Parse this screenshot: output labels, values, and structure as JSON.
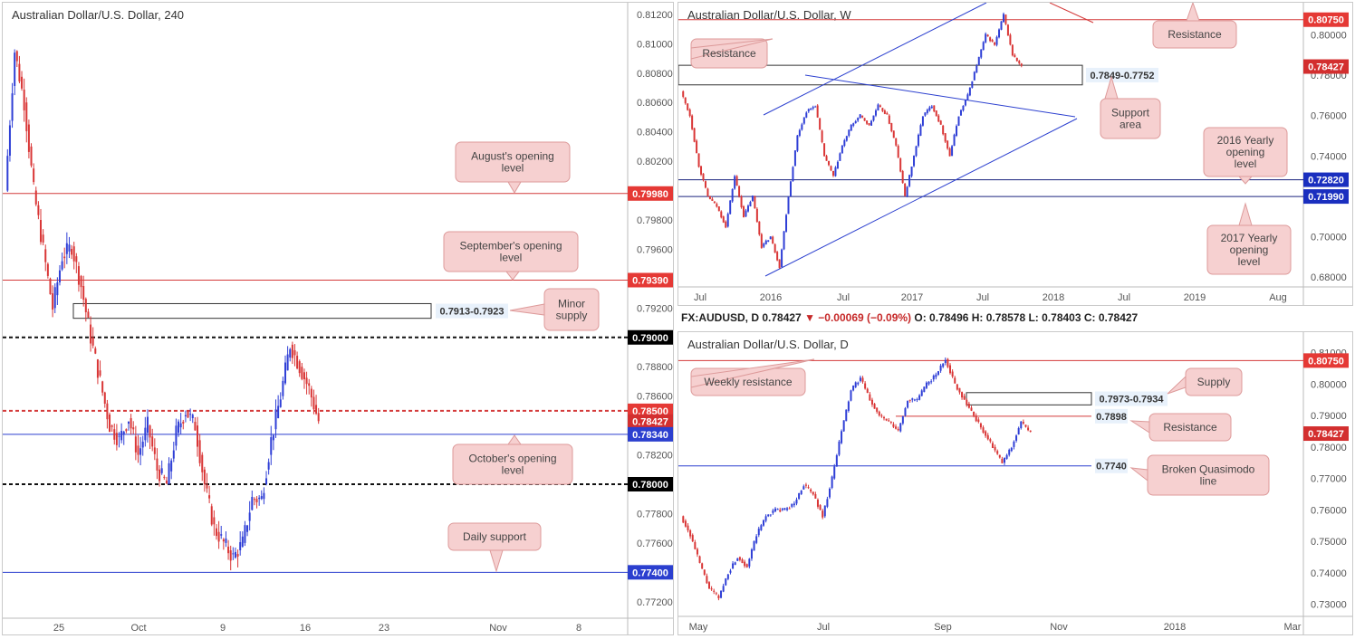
{
  "colors": {
    "bull": "#2f3fd6",
    "bear": "#d93636",
    "red_line": "#d43a3a",
    "blue_line": "#2b3fcf",
    "callout_bg": "#f6d0d0",
    "callout_border": "#dd9a9a",
    "zone_bg": "#e8f1fb"
  },
  "left_panel": {
    "title": "Australian Dollar/U.S. Dollar, 240",
    "ylim": [
      0.771,
      0.8123
    ],
    "y_ticks": [
      "0.81200",
      "0.81000",
      "0.80800",
      "0.80600",
      "0.80400",
      "0.80200",
      "0.79980",
      "0.79800",
      "0.79600",
      "0.79390",
      "0.79200",
      "0.79000",
      "0.78800",
      "0.78600",
      "0.78500",
      "0.78427",
      "0.78340",
      "0.78200",
      "0.78000",
      "0.77800",
      "0.77600",
      "0.77400",
      "0.77200"
    ],
    "x_ticks": [
      "25",
      "Oct",
      "9",
      "16",
      "23",
      "Nov",
      "8"
    ],
    "levels": [
      {
        "label": "0.79980",
        "value": 0.7998,
        "style": "red"
      },
      {
        "label": "0.79390",
        "value": 0.7939,
        "style": "red"
      },
      {
        "label": "0.79000",
        "value": 0.79,
        "style": "black-dash"
      },
      {
        "label": "0.78500",
        "value": 0.785,
        "style": "red-dash"
      },
      {
        "label": "0.78427",
        "value": 0.78427,
        "style": "price"
      },
      {
        "label": "0.78340",
        "value": 0.7834,
        "style": "blue"
      },
      {
        "label": "0.78000",
        "value": 0.78,
        "style": "black-dash"
      },
      {
        "label": "0.77400",
        "value": 0.774,
        "style": "blue"
      }
    ],
    "zone": {
      "label": "0.7913-0.7923",
      "low": 0.7913,
      "high": 0.7923
    },
    "callouts": [
      "August's opening level",
      "September's opening level",
      "Minor supply",
      "October's opening level",
      "Daily support"
    ],
    "path": [
      0.8,
      0.8095,
      0.806,
      0.8,
      0.796,
      0.792,
      0.7955,
      0.7962,
      0.7935,
      0.79,
      0.787,
      0.784,
      0.783,
      0.7845,
      0.782,
      0.784,
      0.781,
      0.78,
      0.7835,
      0.785,
      0.784,
      0.78,
      0.777,
      0.776,
      0.775,
      0.776,
      0.779,
      0.779,
      0.783,
      0.786,
      0.7895,
      0.788,
      0.7865,
      0.7843
    ]
  },
  "weekly_panel": {
    "title": "Australian Dollar/U.S. Dollar, W",
    "ylim": [
      0.676,
      0.815
    ],
    "y_ticks": [
      "0.80750",
      "0.80000",
      "0.78427",
      "0.78000",
      "0.76000",
      "0.74000",
      "0.72820",
      "0.71990",
      "0.70000",
      "0.68000"
    ],
    "x_ticks": [
      "Jul",
      "2016",
      "Jul",
      "2017",
      "Jul",
      "2018",
      "Jul",
      "2019",
      "Aug"
    ],
    "levels": [
      {
        "label": "0.80750",
        "value": 0.8075,
        "style": "red"
      },
      {
        "label": "0.78427",
        "value": 0.78427,
        "style": "price"
      },
      {
        "label": "0.72820",
        "value": 0.7282,
        "style": "navy"
      },
      {
        "label": "0.71990",
        "value": 0.7199,
        "style": "navy"
      }
    ],
    "zone": {
      "label": "0.7849-0.7752",
      "low": 0.7752,
      "high": 0.7849
    },
    "callouts": [
      "Resistance",
      "Resistance",
      "Support area",
      "2016 Yearly opening level",
      "2017 Yearly opening level"
    ],
    "path": [
      0.772,
      0.76,
      0.735,
      0.72,
      0.715,
      0.705,
      0.73,
      0.71,
      0.72,
      0.695,
      0.7,
      0.685,
      0.72,
      0.75,
      0.762,
      0.765,
      0.74,
      0.73,
      0.745,
      0.755,
      0.76,
      0.755,
      0.765,
      0.76,
      0.745,
      0.72,
      0.74,
      0.76,
      0.765,
      0.755,
      0.74,
      0.76,
      0.77,
      0.785,
      0.8,
      0.795,
      0.81,
      0.79,
      0.7843
    ]
  },
  "daily_panel": {
    "ticker": "FX:AUDUSD, D",
    "ticker_price": "0.78427",
    "ticker_change": "▼ −0.00069 (−0.09%)",
    "ticker_ohlc": "O: 0.78496  H: 0.78578  L: 0.78403  C: 0.78427",
    "title": "Australian Dollar/U.S. Dollar, D",
    "ylim": [
      0.729,
      0.8125
    ],
    "y_ticks": [
      "0.81000",
      "0.80750",
      "0.80000",
      "0.79000",
      "0.78427",
      "0.78000",
      "0.77000",
      "0.76000",
      "0.75000",
      "0.74000",
      "0.73000"
    ],
    "x_ticks": [
      "May",
      "Jul",
      "Sep",
      "Nov",
      "2018",
      "Mar"
    ],
    "levels": [
      {
        "label": "0.80750",
        "value": 0.8075,
        "style": "red"
      },
      {
        "label": "0.78427",
        "value": 0.78427,
        "style": "price"
      }
    ],
    "zone": {
      "label": "0.7973-0.7934",
      "low": 0.7934,
      "high": 0.7973
    },
    "value_tags": [
      "0.7898",
      "0.7740"
    ],
    "callouts": [
      "Weekly resistance",
      "Supply",
      "Resistance",
      "Broken Quasimodo line"
    ],
    "path": [
      0.758,
      0.752,
      0.743,
      0.735,
      0.732,
      0.74,
      0.745,
      0.742,
      0.752,
      0.758,
      0.76,
      0.76,
      0.762,
      0.768,
      0.765,
      0.758,
      0.77,
      0.785,
      0.798,
      0.802,
      0.795,
      0.79,
      0.788,
      0.785,
      0.795,
      0.795,
      0.8,
      0.803,
      0.808,
      0.8,
      0.795,
      0.79,
      0.785,
      0.78,
      0.775,
      0.78,
      0.788,
      0.7843
    ]
  }
}
